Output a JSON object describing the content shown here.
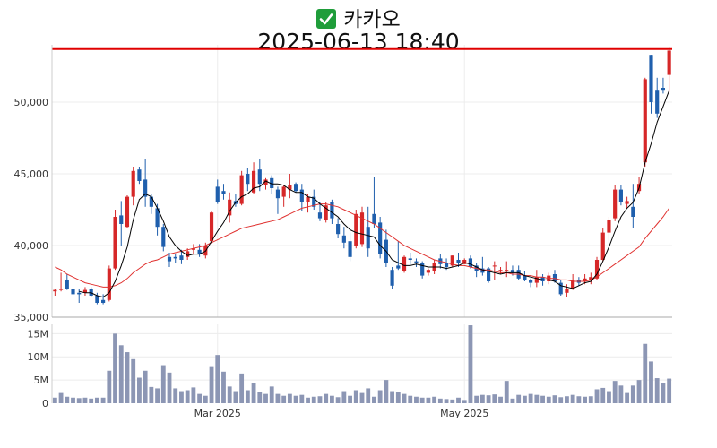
{
  "header": {
    "title": "카카오",
    "subtitle": "2025-06-13 18:40",
    "icon": "check-mark-icon",
    "icon_color": "#1f9d3a"
  },
  "chart_data": {
    "type": "candlestick",
    "colors": {
      "up": "#d62728",
      "down": "#1f5fad",
      "volume": "#8c96b4",
      "ma_short": "#000000",
      "ma_long": "#e0312f",
      "ref_line": "#e00000"
    },
    "price_axis": {
      "min": 35000,
      "max": 54000,
      "ticks": [
        35000,
        40000,
        45000,
        50000
      ],
      "tick_labels": [
        "35,000",
        "40,000",
        "45,000",
        "50,000"
      ]
    },
    "volume_axis": {
      "min": 0,
      "max": 17,
      "ticks": [
        0,
        5,
        10,
        15
      ],
      "tick_labels": [
        "0",
        "5M",
        "10M",
        "15M"
      ]
    },
    "x_labels": [
      {
        "index": 27,
        "label": "Mar 2025"
      },
      {
        "index": 68,
        "label": "May 2025"
      }
    ],
    "reference_line": 53700,
    "candles": [
      [
        36800,
        37000,
        36500,
        36900
      ],
      [
        36900,
        38100,
        36800,
        37000
      ],
      [
        37600,
        38000,
        36900,
        37000
      ],
      [
        37000,
        37100,
        36500,
        36600
      ],
      [
        36700,
        37000,
        36000,
        36600
      ],
      [
        36700,
        37100,
        36500,
        36900
      ],
      [
        37000,
        37100,
        36400,
        36500
      ],
      [
        36500,
        36700,
        35900,
        36000
      ],
      [
        36200,
        36600,
        35900,
        36000
      ],
      [
        36200,
        38600,
        36100,
        38400
      ],
      [
        38400,
        42500,
        38300,
        42000
      ],
      [
        42100,
        43100,
        40000,
        41500
      ],
      [
        41300,
        43500,
        41200,
        43400
      ],
      [
        43400,
        45500,
        42800,
        45200
      ],
      [
        45300,
        45500,
        44300,
        44500
      ],
      [
        44600,
        46000,
        42700,
        43400
      ],
      [
        43400,
        43600,
        42200,
        42700
      ],
      [
        42600,
        42900,
        40700,
        41300
      ],
      [
        41300,
        41500,
        39600,
        39900
      ],
      [
        39200,
        39500,
        38500,
        38900
      ],
      [
        39200,
        39400,
        38800,
        39100
      ],
      [
        39300,
        39700,
        38700,
        39000
      ],
      [
        39200,
        39800,
        39000,
        39600
      ],
      [
        39700,
        40100,
        39400,
        39800
      ],
      [
        39700,
        40100,
        39200,
        39400
      ],
      [
        39300,
        40200,
        39100,
        40000
      ],
      [
        40300,
        42400,
        40200,
        42300
      ],
      [
        44100,
        44600,
        42900,
        43000
      ],
      [
        43800,
        44300,
        43200,
        43600
      ],
      [
        42100,
        43700,
        41600,
        43200
      ],
      [
        43100,
        43600,
        42700,
        42900
      ],
      [
        42900,
        45200,
        42800,
        44900
      ],
      [
        45000,
        45400,
        43800,
        44300
      ],
      [
        43700,
        45800,
        43600,
        45200
      ],
      [
        45300,
        46000,
        43800,
        44300
      ],
      [
        44200,
        44700,
        43900,
        44600
      ],
      [
        44700,
        44900,
        43600,
        44000
      ],
      [
        43900,
        44100,
        42200,
        43300
      ],
      [
        43400,
        44200,
        42700,
        44100
      ],
      [
        43900,
        45000,
        43300,
        44200
      ],
      [
        44300,
        44400,
        43700,
        43800
      ],
      [
        43900,
        44300,
        42400,
        43000
      ],
      [
        43000,
        43600,
        42300,
        43400
      ],
      [
        43400,
        43900,
        42500,
        42700
      ],
      [
        42300,
        43000,
        41700,
        41900
      ],
      [
        41800,
        43000,
        41600,
        42800
      ],
      [
        43000,
        43200,
        41500,
        41900
      ],
      [
        41500,
        41900,
        40500,
        40800
      ],
      [
        40700,
        41300,
        39800,
        40200
      ],
      [
        40300,
        40900,
        38900,
        39200
      ],
      [
        40000,
        42500,
        39800,
        42200
      ],
      [
        40100,
        42700,
        39900,
        42300
      ],
      [
        41300,
        42700,
        39200,
        39800
      ],
      [
        42200,
        44800,
        41200,
        41500
      ],
      [
        41600,
        42000,
        39100,
        39400
      ],
      [
        40400,
        41100,
        38500,
        38800
      ],
      [
        38300,
        38500,
        37000,
        37200
      ],
      [
        38600,
        40300,
        38300,
        38400
      ],
      [
        38200,
        39300,
        38100,
        39200
      ],
      [
        39100,
        39500,
        38700,
        39000
      ],
      [
        38900,
        39100,
        38500,
        38800
      ],
      [
        38800,
        38900,
        37700,
        37900
      ],
      [
        38100,
        38400,
        37900,
        38300
      ],
      [
        38200,
        39000,
        38000,
        38800
      ],
      [
        39100,
        39400,
        38400,
        38700
      ],
      [
        38800,
        39100,
        38300,
        38500
      ],
      [
        38600,
        39300,
        38500,
        39300
      ],
      [
        39000,
        39500,
        38500,
        38800
      ],
      [
        38700,
        39100,
        38700,
        39000
      ],
      [
        39100,
        39300,
        38400,
        38500
      ],
      [
        38600,
        38800,
        37800,
        38200
      ],
      [
        38400,
        39200,
        37900,
        38100
      ],
      [
        38400,
        38500,
        37400,
        37500
      ],
      [
        38600,
        38900,
        37600,
        38600
      ],
      [
        38200,
        38500,
        38000,
        38300
      ],
      [
        38300,
        38900,
        37800,
        38300
      ],
      [
        38300,
        38600,
        37900,
        38100
      ],
      [
        38300,
        38600,
        37600,
        37700
      ],
      [
        37900,
        38200,
        37500,
        37600
      ],
      [
        37600,
        37700,
        37100,
        37400
      ],
      [
        37400,
        38300,
        37100,
        37800
      ],
      [
        37800,
        38000,
        37200,
        37500
      ],
      [
        37500,
        38100,
        37300,
        37900
      ],
      [
        38000,
        38300,
        37400,
        37500
      ],
      [
        37400,
        37600,
        36500,
        36600
      ],
      [
        36700,
        37300,
        36400,
        37000
      ],
      [
        37000,
        38000,
        36900,
        37600
      ],
      [
        37600,
        37800,
        37200,
        37400
      ],
      [
        37500,
        38000,
        37300,
        37700
      ],
      [
        37600,
        38100,
        37300,
        37800
      ],
      [
        37700,
        39200,
        37600,
        39000
      ],
      [
        39000,
        41200,
        38900,
        40900
      ],
      [
        40900,
        42000,
        40200,
        41800
      ],
      [
        41900,
        44200,
        41700,
        43900
      ],
      [
        43900,
        44200,
        42800,
        43000
      ],
      [
        42900,
        43400,
        42600,
        43100
      ],
      [
        42700,
        44300,
        41200,
        42000
      ],
      [
        43800,
        44800,
        43600,
        44300
      ],
      [
        45800,
        51700,
        45500,
        51600
      ],
      [
        53300,
        53300,
        49200,
        50000
      ],
      [
        50800,
        51700,
        48900,
        49200
      ],
      [
        51000,
        51700,
        50600,
        50800
      ],
      [
        51900,
        53800,
        50700,
        53600
      ]
    ],
    "volumes": [
      1.2,
      2.2,
      1.4,
      1.2,
      1.1,
      1.2,
      1.0,
      1.2,
      1.2,
      7.0,
      15.0,
      12.5,
      11.0,
      9.5,
      5.5,
      7.0,
      3.5,
      3.2,
      8.2,
      6.6,
      3.2,
      2.6,
      2.8,
      3.4,
      2.0,
      1.6,
      7.8,
      10.4,
      6.8,
      3.6,
      2.6,
      6.4,
      2.8,
      4.4,
      2.4,
      2.0,
      3.6,
      2.0,
      1.6,
      2.0,
      1.6,
      1.8,
      1.2,
      1.4,
      1.5,
      2.0,
      1.6,
      1.3,
      2.6,
      1.6,
      2.8,
      2.2,
      3.2,
      1.4,
      2.8,
      5.0,
      2.6,
      2.4,
      2.0,
      1.6,
      1.4,
      1.2,
      1.2,
      1.4,
      1.0,
      0.9,
      0.8,
      1.2,
      0.7,
      16.8,
      1.6,
      1.8,
      1.7,
      1.9,
      1.4,
      4.8,
      1.0,
      1.8,
      1.6,
      2.0,
      1.8,
      1.6,
      1.4,
      1.7,
      1.3,
      1.5,
      1.8,
      1.5,
      1.4,
      1.5,
      3.0,
      3.3,
      2.6,
      4.8,
      3.8,
      2.2,
      3.8,
      5.0,
      12.8,
      9.0,
      5.4,
      4.4,
      5.3
    ],
    "ma_short": [
      null,
      null,
      null,
      null,
      36800,
      36700,
      36700,
      36500,
      36400,
      36700,
      37500,
      38600,
      39900,
      41800,
      43200,
      43600,
      43400,
      42600,
      41700,
      40600,
      40000,
      39600,
      39300,
      39400,
      39400,
      39600,
      40300,
      41000,
      41600,
      42400,
      43000,
      43400,
      43600,
      44000,
      44100,
      44500,
      44300,
      44300,
      44200,
      43900,
      43700,
      43700,
      43400,
      43300,
      42900,
      42600,
      42300,
      42000,
      41500,
      41100,
      40900,
      40800,
      40700,
      40600,
      40000,
      39600,
      39000,
      38800,
      38600,
      38600,
      38700,
      38600,
      38500,
      38500,
      38500,
      38400,
      38500,
      38600,
      38800,
      38700,
      38500,
      38300,
      38200,
      38100,
      38000,
      38100,
      38100,
      38100,
      37900,
      37800,
      37700,
      37600,
      37600,
      37500,
      37200,
      37100,
      37000,
      37200,
      37400,
      37500,
      38000,
      38900,
      39900,
      41000,
      42000,
      42600,
      43000,
      44000,
      45800,
      47100,
      48600,
      49700,
      50800
    ],
    "ma_long": [
      38500,
      38300,
      38000,
      37800,
      37600,
      37400,
      37300,
      37200,
      37100,
      37100,
      37200,
      37400,
      37700,
      38100,
      38400,
      38700,
      38900,
      39000,
      39200,
      39400,
      39500,
      39600,
      39700,
      39800,
      39900,
      40000,
      40200,
      40400,
      40600,
      40800,
      41000,
      41200,
      41300,
      41400,
      41500,
      41600,
      41700,
      41800,
      42000,
      42200,
      42400,
      42600,
      42700,
      42800,
      42900,
      42900,
      42800,
      42700,
      42500,
      42300,
      42100,
      41900,
      41700,
      41500,
      41200,
      40900,
      40600,
      40300,
      40000,
      39800,
      39600,
      39400,
      39200,
      39000,
      38900,
      38800,
      38700,
      38600,
      38600,
      38500,
      38400,
      38300,
      38300,
      38200,
      38100,
      38100,
      38000,
      38000,
      37900,
      37900,
      37800,
      37800,
      37700,
      37700,
      37600,
      37600,
      37500,
      37500,
      37500,
      37600,
      37800,
      38100,
      38400,
      38700,
      39000,
      39300,
      39600,
      39900,
      40500,
      41000,
      41500,
      42000,
      42600
    ]
  }
}
